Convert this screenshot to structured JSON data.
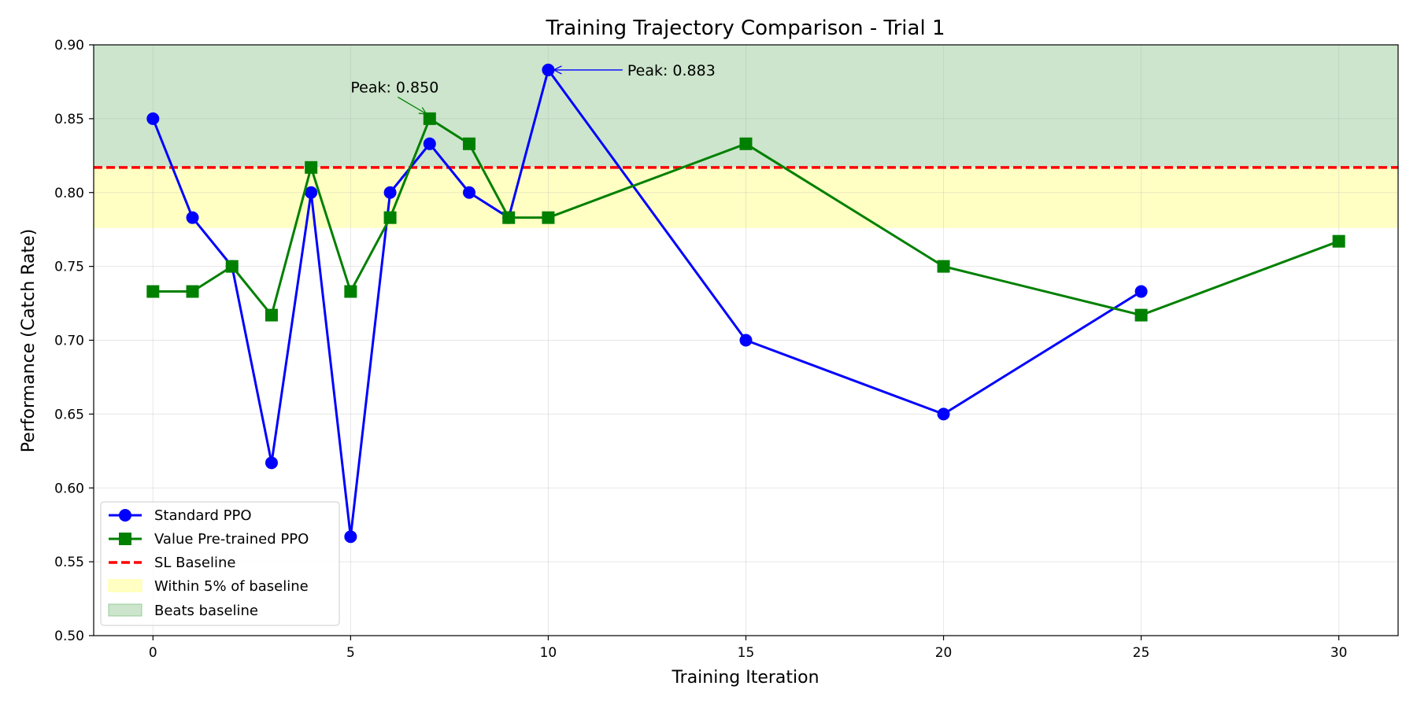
{
  "chart_data": {
    "type": "line",
    "title": "Training Trajectory Comparison - Trial 1",
    "xlabel": "Training Iteration",
    "ylabel": "Performance (Catch Rate)",
    "xlim": [
      -1.5,
      31.5
    ],
    "ylim": [
      0.5,
      0.9
    ],
    "xticks": [
      0,
      5,
      10,
      15,
      20,
      25,
      30
    ],
    "yticks": [
      "0.50",
      "0.55",
      "0.60",
      "0.65",
      "0.70",
      "0.75",
      "0.80",
      "0.85",
      "0.90"
    ],
    "grid": true,
    "legend_position": "lower-left",
    "series": [
      {
        "name": "Standard PPO",
        "color": "#0000ff",
        "marker": "circle",
        "x": [
          0,
          1,
          2,
          3,
          4,
          5,
          6,
          7,
          8,
          9,
          10,
          15,
          20,
          25
        ],
        "y": [
          0.85,
          0.783,
          0.75,
          0.617,
          0.8,
          0.567,
          0.8,
          0.833,
          0.8,
          0.783,
          0.883,
          0.7,
          0.65,
          0.733
        ]
      },
      {
        "name": "Value Pre-trained PPO",
        "color": "#008000",
        "marker": "square",
        "x": [
          0,
          1,
          2,
          3,
          4,
          5,
          6,
          7,
          8,
          9,
          10,
          15,
          20,
          25,
          30
        ],
        "y": [
          0.733,
          0.733,
          0.75,
          0.717,
          0.817,
          0.733,
          0.783,
          0.85,
          0.833,
          0.783,
          0.783,
          0.833,
          0.75,
          0.717,
          0.767
        ]
      }
    ],
    "baseline": {
      "name": "SL Baseline",
      "value": 0.817,
      "color": "#ff0000"
    },
    "bands": [
      {
        "name": "Within 5% of baseline",
        "from": 0.776,
        "to": 0.817,
        "color": "#ffffc4"
      },
      {
        "name": "Beats baseline",
        "from": 0.817,
        "to": 0.9,
        "color": "#cce5cc"
      }
    ],
    "annotations": [
      {
        "text": "Peak: 0.883",
        "x": 10,
        "y": 0.883,
        "text_x": 12,
        "text_y": 0.883,
        "color": "#0000ff"
      },
      {
        "text": "Peak: 0.850",
        "x": 7,
        "y": 0.85,
        "text_x": 5,
        "text_y": 0.871,
        "color": "#008000"
      }
    ]
  }
}
